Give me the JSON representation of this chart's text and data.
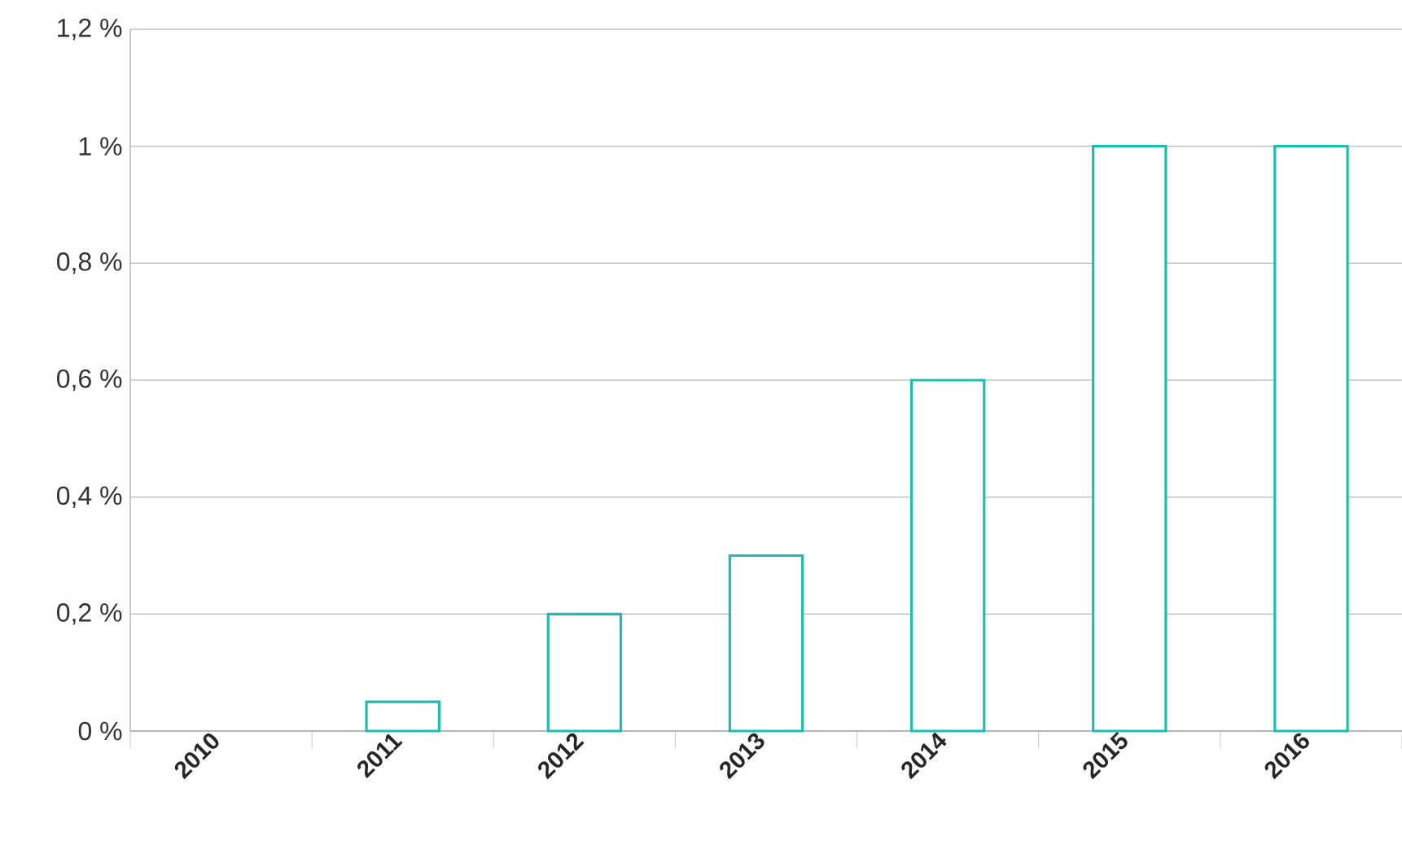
{
  "chart_data": {
    "type": "bar",
    "categories": [
      "2010",
      "2011",
      "2012",
      "2013",
      "2014",
      "2015",
      "2016"
    ],
    "values": [
      0,
      0.05,
      0.2,
      0.3,
      0.6,
      1.0,
      1.0
    ],
    "color": "#1ebdb0",
    "ylim": [
      0,
      1.2
    ],
    "yticks": [
      {
        "value": 0,
        "label": "0 %"
      },
      {
        "value": 0.2,
        "label": "0,2 %"
      },
      {
        "value": 0.4,
        "label": "0,4 %"
      },
      {
        "value": 0.6,
        "label": "0,6 %"
      },
      {
        "value": 0.8,
        "label": "0,8 %"
      },
      {
        "value": 1.0,
        "label": "1 %"
      },
      {
        "value": 1.2,
        "label": "1,2 %"
      }
    ],
    "grid": "y"
  }
}
